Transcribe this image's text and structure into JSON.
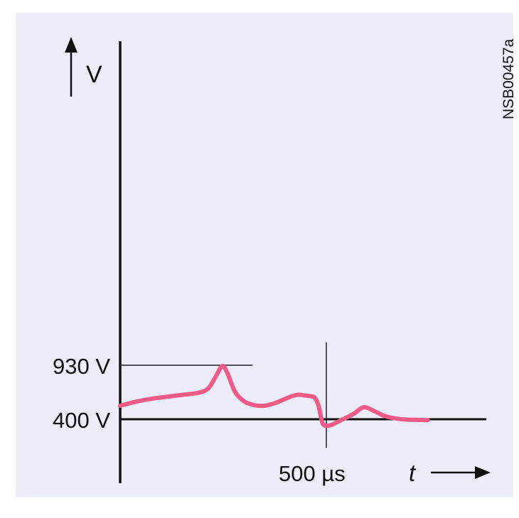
{
  "figure_code": "NSB00457a",
  "colors": {
    "panel": "#ecedf8",
    "axis": "#111111",
    "trace": "#ef5a87"
  },
  "chart_data": {
    "type": "line",
    "ylabel": "V",
    "xlabel": "t",
    "grid": false,
    "y_ticks": [
      {
        "value": 930,
        "label": "930 V"
      },
      {
        "value": 400,
        "label": "400 V"
      }
    ],
    "x_ticks": [
      {
        "value": 500,
        "label": "500 µs"
      }
    ],
    "xlim": [
      0,
      940
    ],
    "ylim": [
      -250,
      4200
    ],
    "series": [
      {
        "x": [
          0,
          40,
          80,
          120,
          160,
          200,
          225,
          245,
          262,
          275,
          290,
          300,
          320,
          345,
          370,
          400,
          430,
          455,
          470,
          490,
          500,
          510,
          520,
          535,
          550,
          570,
          600,
          625,
          650,
          680,
          710,
          735,
          760,
          790
        ],
        "y": [
          530,
          570,
          600,
          620,
          640,
          660,
          700,
          820,
          930,
          860,
          710,
          640,
          570,
          535,
          530,
          560,
          610,
          640,
          635,
          625,
          610,
          520,
          350,
          330,
          350,
          390,
          450,
          515,
          480,
          425,
          400,
          390,
          388,
          385
        ]
      }
    ]
  }
}
